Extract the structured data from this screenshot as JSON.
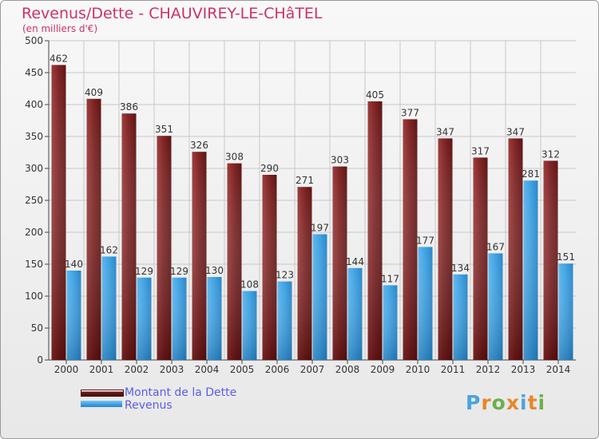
{
  "title": "Revenus/Dette - CHAUVIREY-LE-CHâTEL",
  "subtitle": "(en milliers d'€)",
  "logo_text": "Proxiti",
  "colors": {
    "title": "#cc3366",
    "dette": "#8b2c2c",
    "revenus": "#3a9ee0",
    "legend_text": "#5c5cf0"
  },
  "chart_data": {
    "type": "bar",
    "categories": [
      "2000",
      "2001",
      "2002",
      "2003",
      "2004",
      "2005",
      "2006",
      "2007",
      "2008",
      "2009",
      "2010",
      "2011",
      "2012",
      "2013",
      "2014"
    ],
    "series": [
      {
        "name": "Montant de la Dette",
        "values": [
          462,
          409,
          386,
          351,
          326,
          308,
          290,
          271,
          303,
          405,
          377,
          347,
          317,
          347,
          312
        ]
      },
      {
        "name": "Revenus",
        "values": [
          140,
          162,
          129,
          129,
          130,
          108,
          123,
          197,
          144,
          117,
          177,
          134,
          167,
          281,
          151
        ]
      }
    ],
    "yticks": [
      "0",
      "50",
      "100",
      "150",
      "200",
      "250",
      "300",
      "350",
      "400",
      "450",
      "500"
    ],
    "ylim": [
      0,
      500
    ],
    "grid": true,
    "legend_position": "bottom-left"
  }
}
